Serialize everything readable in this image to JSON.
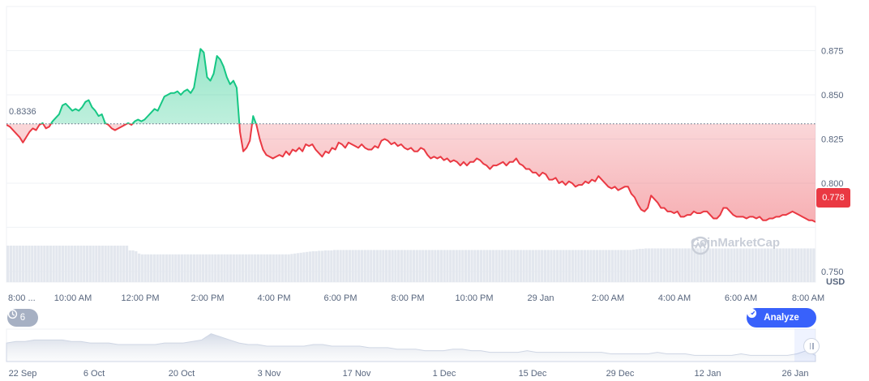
{
  "chart_data": {
    "type": "line",
    "currency_label": "USD",
    "open_price_label": "0.8336",
    "current_price_label": "0.778",
    "y_ticks": [
      "0.875",
      "0.850",
      "0.825",
      "0.800",
      "0.750"
    ],
    "ylim": [
      0.744,
      0.9
    ],
    "baseline": 0.8336,
    "x_ticks": [
      "8:00 ...",
      "10:00 AM",
      "12:00 PM",
      "2:00 PM",
      "4:00 PM",
      "6:00 PM",
      "8:00 PM",
      "10:00 PM",
      "29 Jan",
      "2:00 AM",
      "4:00 AM",
      "6:00 AM",
      "8:00 AM"
    ],
    "x_tick_index": [
      0,
      2,
      4,
      6,
      8,
      10,
      12,
      14,
      16,
      18,
      20,
      22,
      24
    ],
    "series": [
      {
        "values": [
          0.833,
          0.832,
          0.83,
          0.828,
          0.826,
          0.823,
          0.826,
          0.829,
          0.831,
          0.83,
          0.833,
          0.834,
          0.831,
          0.832,
          0.835,
          0.837,
          0.839,
          0.844,
          0.845,
          0.843,
          0.841,
          0.842,
          0.841,
          0.843,
          0.846,
          0.847,
          0.843,
          0.841,
          0.838,
          0.839,
          0.834,
          0.833,
          0.831,
          0.83,
          0.831,
          0.832,
          0.833,
          0.834,
          0.833,
          0.835,
          0.836,
          0.835,
          0.836,
          0.838,
          0.84,
          0.842,
          0.841,
          0.845,
          0.849,
          0.85,
          0.851,
          0.851,
          0.852,
          0.85,
          0.852,
          0.853,
          0.851,
          0.854,
          0.865,
          0.876,
          0.874,
          0.86,
          0.858,
          0.862,
          0.872,
          0.87,
          0.866,
          0.86,
          0.856,
          0.858,
          0.854,
          0.829,
          0.818,
          0.82,
          0.824,
          0.838,
          0.833,
          0.825,
          0.819,
          0.816,
          0.815,
          0.814,
          0.815,
          0.816,
          0.815,
          0.818,
          0.816,
          0.819,
          0.818,
          0.82,
          0.818,
          0.822,
          0.821,
          0.822,
          0.819,
          0.817,
          0.815,
          0.818,
          0.817,
          0.82,
          0.819,
          0.823,
          0.822,
          0.82,
          0.823,
          0.822,
          0.821,
          0.82,
          0.822,
          0.82,
          0.819,
          0.819,
          0.821,
          0.82,
          0.824,
          0.825,
          0.824,
          0.822,
          0.823,
          0.821,
          0.822,
          0.82,
          0.819,
          0.82,
          0.818,
          0.818,
          0.82,
          0.819,
          0.816,
          0.814,
          0.815,
          0.814,
          0.815,
          0.813,
          0.814,
          0.812,
          0.813,
          0.812,
          0.81,
          0.812,
          0.81,
          0.812,
          0.812,
          0.814,
          0.813,
          0.811,
          0.81,
          0.808,
          0.81,
          0.81,
          0.811,
          0.812,
          0.81,
          0.812,
          0.812,
          0.814,
          0.811,
          0.81,
          0.808,
          0.808,
          0.806,
          0.806,
          0.804,
          0.806,
          0.805,
          0.802,
          0.802,
          0.803,
          0.8,
          0.801,
          0.799,
          0.801,
          0.8,
          0.798,
          0.799,
          0.799,
          0.801,
          0.8,
          0.802,
          0.801,
          0.804,
          0.802,
          0.8,
          0.798,
          0.797,
          0.798,
          0.796,
          0.797,
          0.798,
          0.798,
          0.794,
          0.792,
          0.788,
          0.785,
          0.784,
          0.786,
          0.793,
          0.791,
          0.789,
          0.786,
          0.786,
          0.784,
          0.784,
          0.783,
          0.784,
          0.781,
          0.781,
          0.782,
          0.782,
          0.784,
          0.783,
          0.783,
          0.784,
          0.784,
          0.782,
          0.78,
          0.78,
          0.782,
          0.786,
          0.786,
          0.784,
          0.782,
          0.781,
          0.781,
          0.781,
          0.78,
          0.781,
          0.781,
          0.78,
          0.781,
          0.779,
          0.779,
          0.78,
          0.78,
          0.781,
          0.781,
          0.782,
          0.782,
          0.783,
          0.784,
          0.783,
          0.782,
          0.781,
          0.78,
          0.779,
          0.779,
          0.778
        ]
      }
    ],
    "volume": [
      0.92,
      0.92,
      0.92,
      0.92,
      0.92,
      0.92,
      0.92,
      0.92,
      0.92,
      0.92,
      0.92,
      0.92,
      0.92,
      0.92,
      0.92,
      0.92,
      0.92,
      0.92,
      0.92,
      0.92,
      0.92,
      0.92,
      0.92,
      0.92,
      0.92,
      0.92,
      0.92,
      0.92,
      0.92,
      0.92,
      0.92,
      0.92,
      0.92,
      0.92,
      0.92,
      0.92,
      0.92,
      0.92,
      0.92,
      0.92,
      0.8,
      0.8,
      0.78,
      0.72,
      0.7,
      0.7,
      0.7,
      0.7,
      0.7,
      0.7,
      0.7,
      0.7,
      0.7,
      0.7,
      0.7,
      0.7,
      0.7,
      0.7,
      0.7,
      0.7,
      0.7,
      0.7,
      0.7,
      0.7,
      0.7,
      0.7,
      0.7,
      0.7,
      0.7,
      0.7,
      0.7,
      0.7,
      0.7,
      0.7,
      0.7,
      0.7,
      0.7,
      0.7,
      0.7,
      0.7,
      0.7,
      0.7,
      0.7,
      0.7,
      0.7,
      0.7,
      0.7,
      0.7,
      0.7,
      0.7,
      0.7,
      0.7,
      0.7,
      0.71,
      0.72,
      0.73,
      0.74,
      0.75,
      0.76,
      0.77,
      0.78,
      0.78,
      0.79,
      0.79,
      0.8,
      0.8,
      0.8,
      0.81,
      0.81,
      0.81,
      0.81,
      0.81,
      0.81,
      0.81,
      0.81,
      0.81,
      0.81,
      0.81,
      0.81,
      0.81,
      0.81,
      0.81,
      0.81,
      0.81,
      0.81,
      0.81,
      0.81,
      0.81,
      0.81,
      0.81,
      0.81,
      0.81,
      0.81,
      0.81,
      0.81,
      0.81,
      0.81,
      0.81,
      0.81,
      0.81,
      0.81,
      0.81,
      0.81,
      0.81,
      0.81,
      0.81,
      0.81,
      0.81,
      0.81,
      0.81,
      0.81,
      0.81,
      0.81,
      0.81,
      0.81,
      0.81,
      0.81,
      0.81,
      0.81,
      0.81,
      0.81,
      0.81,
      0.81,
      0.81,
      0.81,
      0.81,
      0.81,
      0.81,
      0.81,
      0.81,
      0.81,
      0.81,
      0.81,
      0.81,
      0.81,
      0.81,
      0.81,
      0.81,
      0.81,
      0.81,
      0.81,
      0.81,
      0.81,
      0.81,
      0.81,
      0.81,
      0.81,
      0.81,
      0.81,
      0.81,
      0.81,
      0.81,
      0.81,
      0.81,
      0.81,
      0.81,
      0.81,
      0.81,
      0.81,
      0.81,
      0.81,
      0.81,
      0.81,
      0.81,
      0.81,
      0.82,
      0.83,
      0.84,
      0.84,
      0.85,
      0.85,
      0.85,
      0.85,
      0.85,
      0.85,
      0.85,
      0.85,
      0.85,
      0.85,
      0.85,
      0.85,
      0.85,
      0.85,
      0.85,
      0.85,
      0.85,
      0.85,
      0.85,
      0.85,
      0.85,
      0.85,
      0.85,
      0.85,
      0.85,
      0.85,
      0.85,
      0.85,
      0.85,
      0.85,
      0.85,
      0.85,
      0.85,
      0.85,
      0.85,
      0.85,
      0.85,
      0.85,
      0.85,
      0.85,
      0.85,
      0.85,
      0.85,
      0.85,
      0.85,
      0.85,
      0.85,
      0.85,
      0.85,
      0.85,
      0.85,
      0.85,
      0.85,
      0.85,
      0.85,
      0.85
    ],
    "overview_x_ticks": [
      "22 Sep",
      "6 Oct",
      "20 Oct",
      "3 Nov",
      "17 Nov",
      "1 Dec",
      "15 Dec",
      "29 Dec",
      "12 Jan",
      "26 Jan"
    ],
    "overview_values": [
      0.86,
      0.87,
      0.87,
      0.88,
      0.88,
      0.88,
      0.88,
      0.87,
      0.87,
      0.86,
      0.86,
      0.86,
      0.85,
      0.85,
      0.85,
      0.85,
      0.85,
      0.86,
      0.86,
      0.86,
      0.87,
      0.88,
      0.92,
      0.9,
      0.88,
      0.86,
      0.85,
      0.85,
      0.84,
      0.84,
      0.84,
      0.84,
      0.84,
      0.85,
      0.85,
      0.84,
      0.84,
      0.84,
      0.84,
      0.83,
      0.83,
      0.83,
      0.82,
      0.82,
      0.82,
      0.81,
      0.81,
      0.81,
      0.82,
      0.82,
      0.81,
      0.81,
      0.8,
      0.8,
      0.8,
      0.8,
      0.81,
      0.8,
      0.8,
      0.8,
      0.8,
      0.8,
      0.8,
      0.8,
      0.8,
      0.79,
      0.79,
      0.79,
      0.79,
      0.79,
      0.8,
      0.79,
      0.79,
      0.79,
      0.78,
      0.78,
      0.78,
      0.78,
      0.78,
      0.79,
      0.78,
      0.78,
      0.78,
      0.78,
      0.78,
      0.79,
      0.81,
      0.78
    ],
    "colors": {
      "up": "#16c784",
      "down": "#ea3943",
      "grid": "#eff2f5",
      "axis": "#58667e",
      "accent": "#3861fb"
    }
  },
  "controls": {
    "history_count": "6",
    "history_icon": "history-clock-icon",
    "analyze_label": "Analyze",
    "analyze_icon": "analyze-icon",
    "chevron_icon": "chevron-right-icon"
  },
  "watermark": {
    "text": "CoinMarketCap",
    "icon": "coinmarketcap-logo"
  }
}
